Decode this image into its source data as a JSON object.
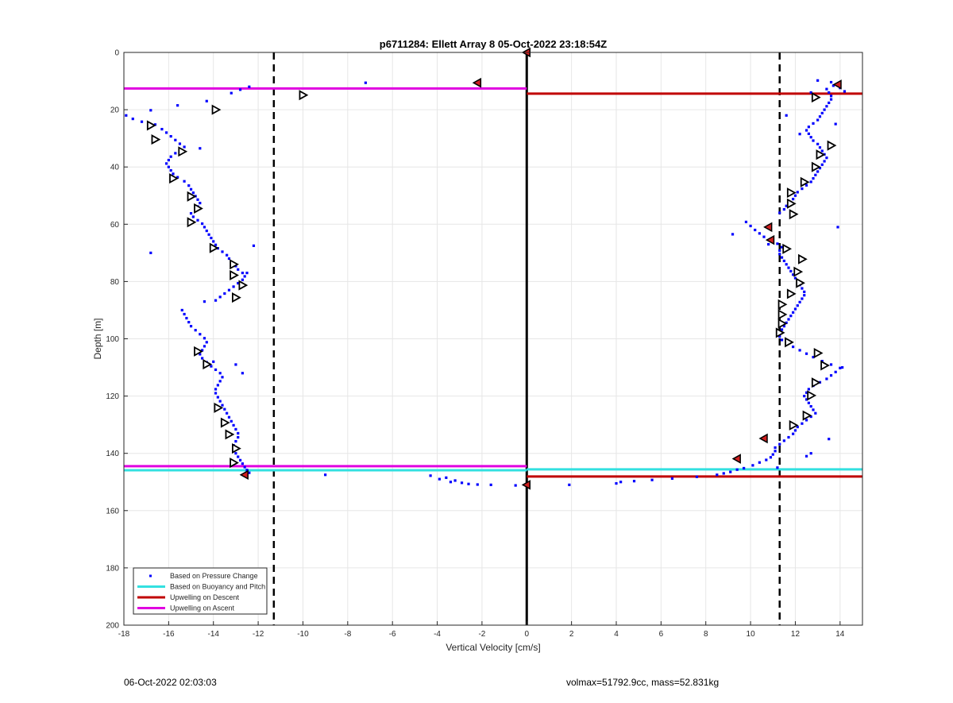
{
  "chart_data": {
    "type": "scatter",
    "title": "p6711284: Ellett Array 8 05-Oct-2022 23:18:54Z",
    "xlabel": "Vertical Velocity [cm/s]",
    "ylabel": "Depth [m]",
    "xlim": [
      -18,
      15
    ],
    "ylim": [
      0,
      200
    ],
    "y_reversed": true,
    "grid": true,
    "x_ticks": [
      "-18",
      "-16",
      "-14",
      "-12",
      "-10",
      "-8",
      "-6",
      "-4",
      "-2",
      "0",
      "2",
      "4",
      "6",
      "8",
      "10",
      "12",
      "14"
    ],
    "y_ticks": [
      "0",
      "20",
      "40",
      "60",
      "80",
      "100",
      "120",
      "140",
      "160",
      "180",
      "200"
    ],
    "legend_position": "bottom-left",
    "legend": [
      {
        "label": "Based on Pressure Change",
        "style": "dot",
        "color": "#0000ff"
      },
      {
        "label": "Based on Buoyancy and Pitch",
        "style": "line",
        "color": "#33e0e0"
      },
      {
        "label": "Upwelling on Descent",
        "style": "line",
        "color": "#c00000"
      },
      {
        "label": "Upwelling on Ascent",
        "style": "line",
        "color": "#e000e0"
      }
    ],
    "vertical_lines": [
      {
        "x": -11.3,
        "style": "dashed",
        "color": "#000000"
      },
      {
        "x": 0,
        "style": "solid",
        "color": "#000000"
      },
      {
        "x": 11.3,
        "style": "dashed",
        "color": "#000000"
      }
    ],
    "horizontal_segments": [
      {
        "series": "Upwelling on Ascent",
        "y": 12.6,
        "x_from": -18,
        "x_to": 0,
        "color": "#e000e0"
      },
      {
        "series": "Upwelling on Descent",
        "y": 14.4,
        "x_from": 0,
        "x_to": 15,
        "color": "#c00000"
      },
      {
        "series": "Upwelling on Ascent",
        "y": 144.5,
        "x_from": -18,
        "x_to": 0,
        "color": "#e000e0"
      },
      {
        "series": "Based on Buoyancy and Pitch",
        "y": 145.9,
        "x_from": -18,
        "x_to": 0,
        "color": "#33e0e0"
      },
      {
        "series": "Based on Buoyancy and Pitch",
        "y": 145.6,
        "x_from": 0,
        "x_to": 15,
        "color": "#33e0e0"
      },
      {
        "series": "Upwelling on Descent",
        "y": 148.1,
        "x_from": 0,
        "x_to": 15,
        "color": "#c00000"
      }
    ],
    "pressure_change_points": [
      [
        -17.9,
        22.0
      ],
      [
        -17.6,
        23.2
      ],
      [
        -17.2,
        24.2
      ],
      [
        -16.8,
        20.2
      ],
      [
        -16.6,
        25.2
      ],
      [
        -16.3,
        26.8
      ],
      [
        -16.1,
        28.0
      ],
      [
        -15.9,
        29.3
      ],
      [
        -15.7,
        30.6
      ],
      [
        -15.5,
        31.9
      ],
      [
        -15.3,
        33.0
      ],
      [
        -15.5,
        34.0
      ],
      [
        -15.7,
        35.2
      ],
      [
        -15.9,
        36.4
      ],
      [
        -16.0,
        37.6
      ],
      [
        -16.1,
        38.8
      ],
      [
        -16.0,
        40.0
      ],
      [
        -15.9,
        41.2
      ],
      [
        -15.8,
        42.4
      ],
      [
        -15.6,
        43.6
      ],
      [
        -15.3,
        45.0
      ],
      [
        -15.1,
        46.5
      ],
      [
        -15.0,
        47.8
      ],
      [
        -14.9,
        49.0
      ],
      [
        -14.8,
        50.2
      ],
      [
        -14.7,
        51.4
      ],
      [
        -14.6,
        52.6
      ],
      [
        -14.7,
        53.8
      ],
      [
        -14.8,
        55.0
      ],
      [
        -15.0,
        56.2
      ],
      [
        -14.9,
        57.4
      ],
      [
        -14.7,
        58.6
      ],
      [
        -14.5,
        59.8
      ],
      [
        -14.4,
        61.0
      ],
      [
        -14.3,
        62.3
      ],
      [
        -14.2,
        63.6
      ],
      [
        -14.1,
        64.8
      ],
      [
        -14.0,
        66.0
      ],
      [
        -13.9,
        67.2
      ],
      [
        -13.8,
        68.4
      ],
      [
        -13.6,
        69.6
      ],
      [
        -13.4,
        70.8
      ],
      [
        -13.3,
        72.0
      ],
      [
        -13.2,
        73.3
      ],
      [
        -13.0,
        74.6
      ],
      [
        -12.9,
        75.8
      ],
      [
        -12.7,
        77.0
      ],
      [
        -12.6,
        78.2
      ],
      [
        -12.7,
        79.4
      ],
      [
        -12.9,
        80.6
      ],
      [
        -13.1,
        81.8
      ],
      [
        -13.3,
        83.0
      ],
      [
        -13.5,
        84.2
      ],
      [
        -13.7,
        85.4
      ],
      [
        -13.9,
        86.6
      ],
      [
        -15.4,
        90.0
      ],
      [
        -15.3,
        91.4
      ],
      [
        -15.2,
        92.8
      ],
      [
        -15.1,
        94.2
      ],
      [
        -15.0,
        95.6
      ],
      [
        -14.8,
        97.0
      ],
      [
        -14.6,
        98.4
      ],
      [
        -14.4,
        99.8
      ],
      [
        -14.3,
        101.2
      ],
      [
        -14.4,
        102.6
      ],
      [
        -14.5,
        104.0
      ],
      [
        -14.6,
        105.4
      ],
      [
        -14.5,
        106.8
      ],
      [
        -14.3,
        108.2
      ],
      [
        -14.1,
        109.6
      ],
      [
        -13.9,
        110.8
      ],
      [
        -13.7,
        112.0
      ],
      [
        -13.6,
        113.4
      ],
      [
        -13.7,
        114.8
      ],
      [
        -13.8,
        116.2
      ],
      [
        -13.9,
        117.6
      ],
      [
        -13.9,
        119.0
      ],
      [
        -13.8,
        120.4
      ],
      [
        -13.7,
        121.8
      ],
      [
        -13.6,
        123.2
      ],
      [
        -13.5,
        124.6
      ],
      [
        -13.4,
        126.0
      ],
      [
        -13.3,
        127.4
      ],
      [
        -13.2,
        128.8
      ],
      [
        -13.1,
        130.2
      ],
      [
        -13.0,
        131.6
      ],
      [
        -12.9,
        133.0
      ],
      [
        -12.9,
        134.4
      ],
      [
        -13.0,
        135.8
      ],
      [
        -13.1,
        137.2
      ],
      [
        -13.1,
        138.6
      ],
      [
        -13.0,
        140.0
      ],
      [
        -12.9,
        141.2
      ],
      [
        -12.8,
        142.4
      ],
      [
        -12.7,
        143.6
      ],
      [
        -12.6,
        144.8
      ],
      [
        -12.5,
        145.8
      ],
      [
        -12.4,
        146.8
      ],
      [
        -12.4,
        12.0
      ],
      [
        -12.8,
        13.0
      ],
      [
        -13.2,
        14.2
      ],
      [
        -14.3,
        17.0
      ],
      [
        -15.6,
        18.5
      ],
      [
        -16.8,
        70.0
      ],
      [
        -12.2,
        67.5
      ],
      [
        -12.5,
        77.0
      ],
      [
        -13.0,
        109.0
      ],
      [
        -12.7,
        112.0
      ],
      [
        -14.0,
        108.0
      ],
      [
        -14.6,
        33.5
      ],
      [
        -14.4,
        87.0
      ],
      [
        -7.2,
        10.6
      ],
      [
        -9.0,
        147.5
      ],
      [
        -4.3,
        147.8
      ],
      [
        -3.9,
        149.0
      ],
      [
        -3.6,
        148.5
      ],
      [
        -3.4,
        150.0
      ],
      [
        -3.2,
        149.5
      ],
      [
        -2.9,
        150.3
      ],
      [
        -2.6,
        150.7
      ],
      [
        -2.2,
        150.9
      ],
      [
        -1.6,
        151.0
      ],
      [
        -0.5,
        151.2
      ],
      [
        1.9,
        151.0
      ],
      [
        4.0,
        150.5
      ],
      [
        4.2,
        150.0
      ],
      [
        4.8,
        149.7
      ],
      [
        5.6,
        149.3
      ],
      [
        6.5,
        148.8
      ],
      [
        7.6,
        148.2
      ],
      [
        8.5,
        147.5
      ],
      [
        8.8,
        147.0
      ],
      [
        9.1,
        146.5
      ],
      [
        9.4,
        145.7
      ],
      [
        9.7,
        145.2
      ],
      [
        10.1,
        144.2
      ],
      [
        10.4,
        143.2
      ],
      [
        10.7,
        142.3
      ],
      [
        10.9,
        141.4
      ],
      [
        11.0,
        140.4
      ],
      [
        11.1,
        139.2
      ],
      [
        11.1,
        138.0
      ],
      [
        11.3,
        136.8
      ],
      [
        11.5,
        135.6
      ],
      [
        11.7,
        134.4
      ],
      [
        11.9,
        133.2
      ],
      [
        12.0,
        132.0
      ],
      [
        12.1,
        130.8
      ],
      [
        12.3,
        129.6
      ],
      [
        12.5,
        128.4
      ],
      [
        12.7,
        127.2
      ],
      [
        12.9,
        126.0
      ],
      [
        12.8,
        124.8
      ],
      [
        12.7,
        123.6
      ],
      [
        12.6,
        122.4
      ],
      [
        12.5,
        121.2
      ],
      [
        12.4,
        120.0
      ],
      [
        12.5,
        118.8
      ],
      [
        12.6,
        117.6
      ],
      [
        12.8,
        116.4
      ],
      [
        13.1,
        115.2
      ],
      [
        13.4,
        114.0
      ],
      [
        13.6,
        112.8
      ],
      [
        13.8,
        111.6
      ],
      [
        14.0,
        110.2
      ],
      [
        13.6,
        109.0
      ],
      [
        13.2,
        107.8
      ],
      [
        12.8,
        106.4
      ],
      [
        12.5,
        105.2
      ],
      [
        12.2,
        104.0
      ],
      [
        11.9,
        102.8
      ],
      [
        11.6,
        101.6
      ],
      [
        11.4,
        100.4
      ],
      [
        11.3,
        99.2
      ],
      [
        11.3,
        98.0
      ],
      [
        11.4,
        96.8
      ],
      [
        11.5,
        95.6
      ],
      [
        11.6,
        94.4
      ],
      [
        11.7,
        93.2
      ],
      [
        11.8,
        92.0
      ],
      [
        11.9,
        90.8
      ],
      [
        12.0,
        89.6
      ],
      [
        12.1,
        88.4
      ],
      [
        12.2,
        87.2
      ],
      [
        12.3,
        86.0
      ],
      [
        12.4,
        84.8
      ],
      [
        12.4,
        83.6
      ],
      [
        12.3,
        82.4
      ],
      [
        12.2,
        81.2
      ],
      [
        12.1,
        80.0
      ],
      [
        12.0,
        78.8
      ],
      [
        11.9,
        77.6
      ],
      [
        11.8,
        76.4
      ],
      [
        11.7,
        75.2
      ],
      [
        11.6,
        74.0
      ],
      [
        11.5,
        72.8
      ],
      [
        11.4,
        71.6
      ],
      [
        11.3,
        70.4
      ],
      [
        11.3,
        69.2
      ],
      [
        11.4,
        68.0
      ],
      [
        11.2,
        66.8
      ],
      [
        10.9,
        65.6
      ],
      [
        10.6,
        64.4
      ],
      [
        10.4,
        63.2
      ],
      [
        10.2,
        62.0
      ],
      [
        10.0,
        60.6
      ],
      [
        9.8,
        59.2
      ],
      [
        9.2,
        63.5
      ],
      [
        10.8,
        67.0
      ],
      [
        11.3,
        56.0
      ],
      [
        11.5,
        54.8
      ],
      [
        11.6,
        53.6
      ],
      [
        11.8,
        52.4
      ],
      [
        11.9,
        51.2
      ],
      [
        12.0,
        50.0
      ],
      [
        12.1,
        48.8
      ],
      [
        12.3,
        47.6
      ],
      [
        12.5,
        46.4
      ],
      [
        12.7,
        45.2
      ],
      [
        12.8,
        44.0
      ],
      [
        12.9,
        42.8
      ],
      [
        13.0,
        41.6
      ],
      [
        13.1,
        40.4
      ],
      [
        13.2,
        39.2
      ],
      [
        13.3,
        38.0
      ],
      [
        13.4,
        36.8
      ],
      [
        13.3,
        35.6
      ],
      [
        13.2,
        34.4
      ],
      [
        13.1,
        33.2
      ],
      [
        13.0,
        32.0
      ],
      [
        12.8,
        30.8
      ],
      [
        12.7,
        29.6
      ],
      [
        12.6,
        28.4
      ],
      [
        12.5,
        27.2
      ],
      [
        12.6,
        26.0
      ],
      [
        12.8,
        24.8
      ],
      [
        13.0,
        23.6
      ],
      [
        13.1,
        22.4
      ],
      [
        13.2,
        21.2
      ],
      [
        13.3,
        20.0
      ],
      [
        13.4,
        18.8
      ],
      [
        13.5,
        17.6
      ],
      [
        13.6,
        16.4
      ],
      [
        13.6,
        15.2
      ],
      [
        13.5,
        14.0
      ],
      [
        13.4,
        12.8
      ],
      [
        13.7,
        11.6
      ],
      [
        14.0,
        12.4
      ],
      [
        14.2,
        13.6
      ],
      [
        13.6,
        10.4
      ],
      [
        13.0,
        9.8
      ],
      [
        13.9,
        61.0
      ],
      [
        14.1,
        110.0
      ],
      [
        13.5,
        135.0
      ],
      [
        12.7,
        140.0
      ],
      [
        12.5,
        141.0
      ],
      [
        11.2,
        145.0
      ],
      [
        11.6,
        22.0
      ],
      [
        12.2,
        28.5
      ],
      [
        12.7,
        14.0
      ],
      [
        13.8,
        25.0
      ]
    ],
    "open_triangle_markers": [
      [
        -16.8,
        25.5
      ],
      [
        -16.6,
        30.4
      ],
      [
        -15.4,
        34.6
      ],
      [
        -15.8,
        44.0
      ],
      [
        -15.0,
        50.3
      ],
      [
        -14.7,
        54.5
      ],
      [
        -15.0,
        59.3
      ],
      [
        -14.0,
        68.3
      ],
      [
        -13.1,
        74.0
      ],
      [
        -13.1,
        77.8
      ],
      [
        -12.7,
        81.3
      ],
      [
        -13.0,
        85.6
      ],
      [
        -14.7,
        104.4
      ],
      [
        -14.3,
        108.9
      ],
      [
        -13.8,
        124.1
      ],
      [
        -13.5,
        129.3
      ],
      [
        -13.3,
        133.4
      ],
      [
        -13.0,
        138.3
      ],
      [
        -13.1,
        143.3
      ],
      [
        -10.0,
        14.9
      ],
      [
        -13.9,
        20.0
      ],
      [
        12.9,
        15.7
      ],
      [
        13.6,
        32.5
      ],
      [
        13.1,
        35.7
      ],
      [
        12.9,
        40.0
      ],
      [
        12.4,
        45.3
      ],
      [
        11.8,
        49.0
      ],
      [
        11.8,
        52.8
      ],
      [
        11.9,
        56.5
      ],
      [
        11.6,
        68.6
      ],
      [
        12.3,
        72.2
      ],
      [
        12.1,
        76.6
      ],
      [
        12.2,
        80.5
      ],
      [
        11.8,
        84.3
      ],
      [
        11.4,
        88.0
      ],
      [
        11.4,
        91.5
      ],
      [
        11.4,
        94.7
      ],
      [
        11.3,
        97.9
      ],
      [
        11.7,
        101.2
      ],
      [
        13.0,
        105.0
      ],
      [
        13.3,
        109.3
      ],
      [
        12.9,
        115.3
      ],
      [
        12.7,
        119.8
      ],
      [
        12.5,
        126.8
      ],
      [
        11.9,
        130.2
      ]
    ],
    "filled_triangle_markers": [
      [
        0,
        0
      ],
      [
        -2.2,
        10.6
      ],
      [
        13.9,
        11.2
      ],
      [
        10.8,
        61.0
      ],
      [
        10.9,
        65.5
      ],
      [
        10.6,
        134.8
      ],
      [
        9.4,
        141.9
      ],
      [
        -12.6,
        147.5
      ],
      [
        0,
        151.0
      ]
    ]
  },
  "footer": {
    "date": "06-Oct-2022 02:03:03",
    "params": "volmax=51792.9cc, mass=52.831kg"
  }
}
